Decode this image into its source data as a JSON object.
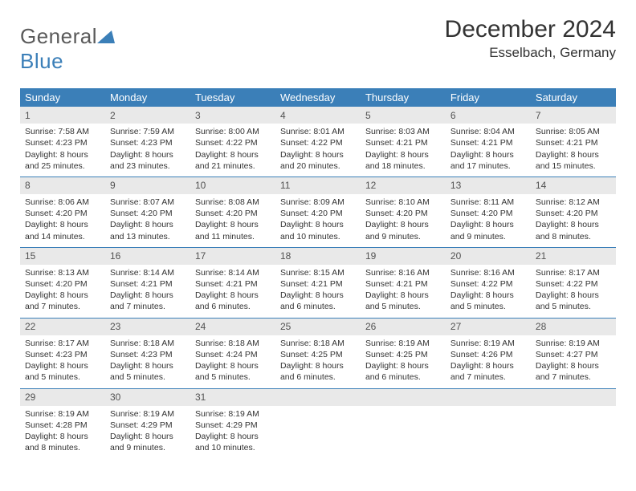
{
  "brand": {
    "name_a": "General",
    "name_b": "Blue"
  },
  "title": "December 2024",
  "location": "Esselbach, Germany",
  "colors": {
    "header_bg": "#3b7fb8",
    "daynum_bg": "#e9e9e9",
    "rule": "#3b7fb8",
    "text": "#333333"
  },
  "dow": [
    "Sunday",
    "Monday",
    "Tuesday",
    "Wednesday",
    "Thursday",
    "Friday",
    "Saturday"
  ],
  "weeks": [
    [
      {
        "n": "1",
        "sr": "Sunrise: 7:58 AM",
        "ss": "Sunset: 4:23 PM",
        "d1": "Daylight: 8 hours",
        "d2": "and 25 minutes."
      },
      {
        "n": "2",
        "sr": "Sunrise: 7:59 AM",
        "ss": "Sunset: 4:23 PM",
        "d1": "Daylight: 8 hours",
        "d2": "and 23 minutes."
      },
      {
        "n": "3",
        "sr": "Sunrise: 8:00 AM",
        "ss": "Sunset: 4:22 PM",
        "d1": "Daylight: 8 hours",
        "d2": "and 21 minutes."
      },
      {
        "n": "4",
        "sr": "Sunrise: 8:01 AM",
        "ss": "Sunset: 4:22 PM",
        "d1": "Daylight: 8 hours",
        "d2": "and 20 minutes."
      },
      {
        "n": "5",
        "sr": "Sunrise: 8:03 AM",
        "ss": "Sunset: 4:21 PM",
        "d1": "Daylight: 8 hours",
        "d2": "and 18 minutes."
      },
      {
        "n": "6",
        "sr": "Sunrise: 8:04 AM",
        "ss": "Sunset: 4:21 PM",
        "d1": "Daylight: 8 hours",
        "d2": "and 17 minutes."
      },
      {
        "n": "7",
        "sr": "Sunrise: 8:05 AM",
        "ss": "Sunset: 4:21 PM",
        "d1": "Daylight: 8 hours",
        "d2": "and 15 minutes."
      }
    ],
    [
      {
        "n": "8",
        "sr": "Sunrise: 8:06 AM",
        "ss": "Sunset: 4:20 PM",
        "d1": "Daylight: 8 hours",
        "d2": "and 14 minutes."
      },
      {
        "n": "9",
        "sr": "Sunrise: 8:07 AM",
        "ss": "Sunset: 4:20 PM",
        "d1": "Daylight: 8 hours",
        "d2": "and 13 minutes."
      },
      {
        "n": "10",
        "sr": "Sunrise: 8:08 AM",
        "ss": "Sunset: 4:20 PM",
        "d1": "Daylight: 8 hours",
        "d2": "and 11 minutes."
      },
      {
        "n": "11",
        "sr": "Sunrise: 8:09 AM",
        "ss": "Sunset: 4:20 PM",
        "d1": "Daylight: 8 hours",
        "d2": "and 10 minutes."
      },
      {
        "n": "12",
        "sr": "Sunrise: 8:10 AM",
        "ss": "Sunset: 4:20 PM",
        "d1": "Daylight: 8 hours",
        "d2": "and 9 minutes."
      },
      {
        "n": "13",
        "sr": "Sunrise: 8:11 AM",
        "ss": "Sunset: 4:20 PM",
        "d1": "Daylight: 8 hours",
        "d2": "and 9 minutes."
      },
      {
        "n": "14",
        "sr": "Sunrise: 8:12 AM",
        "ss": "Sunset: 4:20 PM",
        "d1": "Daylight: 8 hours",
        "d2": "and 8 minutes."
      }
    ],
    [
      {
        "n": "15",
        "sr": "Sunrise: 8:13 AM",
        "ss": "Sunset: 4:20 PM",
        "d1": "Daylight: 8 hours",
        "d2": "and 7 minutes."
      },
      {
        "n": "16",
        "sr": "Sunrise: 8:14 AM",
        "ss": "Sunset: 4:21 PM",
        "d1": "Daylight: 8 hours",
        "d2": "and 7 minutes."
      },
      {
        "n": "17",
        "sr": "Sunrise: 8:14 AM",
        "ss": "Sunset: 4:21 PM",
        "d1": "Daylight: 8 hours",
        "d2": "and 6 minutes."
      },
      {
        "n": "18",
        "sr": "Sunrise: 8:15 AM",
        "ss": "Sunset: 4:21 PM",
        "d1": "Daylight: 8 hours",
        "d2": "and 6 minutes."
      },
      {
        "n": "19",
        "sr": "Sunrise: 8:16 AM",
        "ss": "Sunset: 4:21 PM",
        "d1": "Daylight: 8 hours",
        "d2": "and 5 minutes."
      },
      {
        "n": "20",
        "sr": "Sunrise: 8:16 AM",
        "ss": "Sunset: 4:22 PM",
        "d1": "Daylight: 8 hours",
        "d2": "and 5 minutes."
      },
      {
        "n": "21",
        "sr": "Sunrise: 8:17 AM",
        "ss": "Sunset: 4:22 PM",
        "d1": "Daylight: 8 hours",
        "d2": "and 5 minutes."
      }
    ],
    [
      {
        "n": "22",
        "sr": "Sunrise: 8:17 AM",
        "ss": "Sunset: 4:23 PM",
        "d1": "Daylight: 8 hours",
        "d2": "and 5 minutes."
      },
      {
        "n": "23",
        "sr": "Sunrise: 8:18 AM",
        "ss": "Sunset: 4:23 PM",
        "d1": "Daylight: 8 hours",
        "d2": "and 5 minutes."
      },
      {
        "n": "24",
        "sr": "Sunrise: 8:18 AM",
        "ss": "Sunset: 4:24 PM",
        "d1": "Daylight: 8 hours",
        "d2": "and 5 minutes."
      },
      {
        "n": "25",
        "sr": "Sunrise: 8:18 AM",
        "ss": "Sunset: 4:25 PM",
        "d1": "Daylight: 8 hours",
        "d2": "and 6 minutes."
      },
      {
        "n": "26",
        "sr": "Sunrise: 8:19 AM",
        "ss": "Sunset: 4:25 PM",
        "d1": "Daylight: 8 hours",
        "d2": "and 6 minutes."
      },
      {
        "n": "27",
        "sr": "Sunrise: 8:19 AM",
        "ss": "Sunset: 4:26 PM",
        "d1": "Daylight: 8 hours",
        "d2": "and 7 minutes."
      },
      {
        "n": "28",
        "sr": "Sunrise: 8:19 AM",
        "ss": "Sunset: 4:27 PM",
        "d1": "Daylight: 8 hours",
        "d2": "and 7 minutes."
      }
    ],
    [
      {
        "n": "29",
        "sr": "Sunrise: 8:19 AM",
        "ss": "Sunset: 4:28 PM",
        "d1": "Daylight: 8 hours",
        "d2": "and 8 minutes."
      },
      {
        "n": "30",
        "sr": "Sunrise: 8:19 AM",
        "ss": "Sunset: 4:29 PM",
        "d1": "Daylight: 8 hours",
        "d2": "and 9 minutes."
      },
      {
        "n": "31",
        "sr": "Sunrise: 8:19 AM",
        "ss": "Sunset: 4:29 PM",
        "d1": "Daylight: 8 hours",
        "d2": "and 10 minutes."
      },
      {
        "empty": true
      },
      {
        "empty": true
      },
      {
        "empty": true
      },
      {
        "empty": true
      }
    ]
  ]
}
